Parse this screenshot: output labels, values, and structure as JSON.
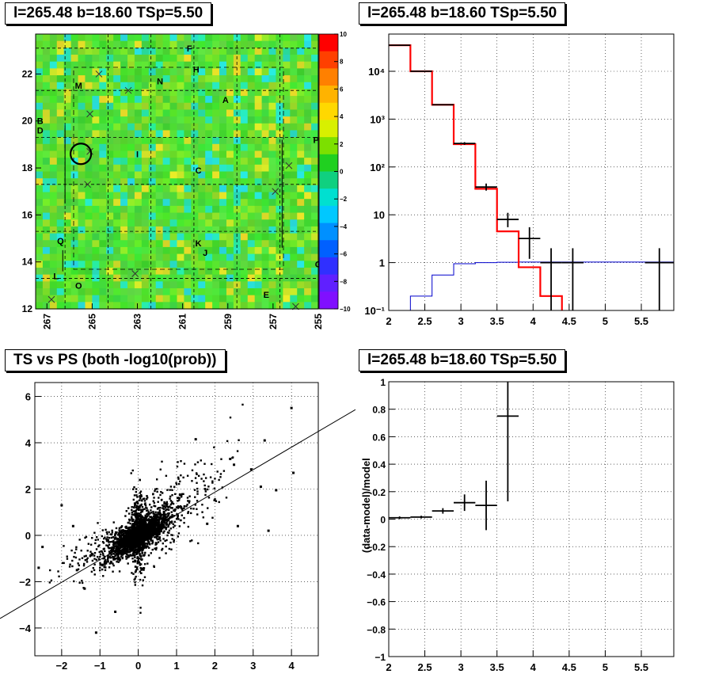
{
  "colors": {
    "red": "#ff0000",
    "blue": "#0000cc",
    "black": "#000000",
    "grid": "#000000"
  },
  "panels": {
    "map": {
      "title": "l=265.48 b=18.60 TSp=5.50",
      "x_ticks": [
        "267",
        "265",
        "263",
        "261",
        "259",
        "257",
        "255"
      ],
      "y_ticks": [
        "12",
        "14",
        "16",
        "18",
        "20",
        "22"
      ],
      "colorbar_ticks": [
        "10",
        "8",
        "6",
        "4",
        "2",
        "0",
        "−2",
        "−4",
        "−6",
        "−8",
        "−10"
      ],
      "source_labels": [
        "F",
        "H",
        "N",
        "M",
        "A",
        "B",
        "D",
        "P",
        "I",
        "C",
        "Q",
        "K",
        "J",
        "L",
        "O",
        "E",
        "G"
      ]
    },
    "spectrum": {
      "title": "l=265.48 b=18.60 TSp=5.50",
      "x_ticks": [
        "2",
        "2.5",
        "3",
        "3.5",
        "4",
        "4.5",
        "5",
        "5.5"
      ],
      "y_ticks": [
        "10⁴",
        "10³",
        "10²",
        "10",
        "1",
        "10⁻¹"
      ]
    },
    "scatter": {
      "title": "TS vs PS (both -log10(prob))",
      "x_ticks": [
        "−2",
        "−1",
        "0",
        "1",
        "2",
        "3",
        "4"
      ],
      "y_ticks": [
        "6",
        "4",
        "2",
        "0",
        "−2",
        "−4"
      ]
    },
    "residual": {
      "title": "l=265.48 b=18.60 TSp=5.50",
      "ylabel": "(data-model)/model",
      "x_ticks": [
        "2",
        "2.5",
        "3",
        "3.5",
        "4",
        "4.5",
        "5",
        "5.5"
      ],
      "y_ticks": [
        "1",
        "0.8",
        "0.6",
        "0.4",
        "0.2",
        "0",
        "−0.2",
        "−0.4",
        "−0.6",
        "−0.8",
        "−1"
      ]
    }
  },
  "chart_data": [
    {
      "type": "heatmap",
      "title": "l=265.48 b=18.60 TSp=5.50",
      "xlim": [
        267.5,
        255
      ],
      "ylim": [
        12,
        23.7
      ],
      "zlim": [
        -10,
        10
      ],
      "x_ticks": [
        267,
        265,
        263,
        261,
        259,
        257,
        255
      ],
      "y_ticks": [
        12,
        14,
        16,
        18,
        20,
        22
      ],
      "source_labels": [
        {
          "label": "F",
          "l": 260.7,
          "b": 23.1
        },
        {
          "label": "H",
          "l": 260.4,
          "b": 22.2
        },
        {
          "label": "N",
          "l": 262.0,
          "b": 21.7
        },
        {
          "label": "M",
          "l": 265.6,
          "b": 21.5
        },
        {
          "label": "A",
          "l": 259.1,
          "b": 20.9
        },
        {
          "label": "B",
          "l": 267.3,
          "b": 20.0
        },
        {
          "label": "D",
          "l": 267.3,
          "b": 19.6
        },
        {
          "label": "P",
          "l": 255.1,
          "b": 19.2
        },
        {
          "label": "I",
          "l": 263.0,
          "b": 18.6
        },
        {
          "label": "C",
          "l": 260.3,
          "b": 17.9
        },
        {
          "label": "Q",
          "l": 266.4,
          "b": 14.9
        },
        {
          "label": "K",
          "l": 260.3,
          "b": 14.8
        },
        {
          "label": "J",
          "l": 260.0,
          "b": 14.4
        },
        {
          "label": "L",
          "l": 266.6,
          "b": 13.4
        },
        {
          "label": "O",
          "l": 265.6,
          "b": 13.0
        },
        {
          "label": "E",
          "l": 257.3,
          "b": 12.6
        },
        {
          "label": "G",
          "l": 255.0,
          "b": 13.9
        }
      ]
    },
    {
      "type": "line",
      "title": "l=265.48 b=18.60 TSp=5.50",
      "xlim": [
        2,
        5.95
      ],
      "ylim": [
        0.1,
        60000
      ],
      "log_y": true,
      "series": [
        {
          "edges": [
            2.0,
            2.3,
            2.6,
            2.9,
            3.2,
            3.5,
            3.8,
            4.1,
            4.4
          ],
          "values": [
            35000,
            10000,
            2000,
            300,
            35,
            4.5,
            0.8,
            0.2,
            0.08
          ]
        },
        {
          "edges": [
            2.0,
            2.3,
            2.6,
            2.9,
            3.2,
            3.5,
            3.8,
            4.1,
            5.95
          ],
          "values": [
            0.1,
            0.2,
            0.55,
            0.95,
            1.0,
            1.02,
            1.03,
            1.03,
            1.03
          ]
        }
      ],
      "points": [
        {
          "x": 2.15,
          "y": 35000,
          "xerr": 0.15,
          "ylo": 34000,
          "yhi": 36000
        },
        {
          "x": 2.45,
          "y": 10000,
          "xerr": 0.15,
          "ylo": 9800,
          "yhi": 10200
        },
        {
          "x": 2.75,
          "y": 2000,
          "xerr": 0.15,
          "ylo": 1950,
          "yhi": 2050
        },
        {
          "x": 3.05,
          "y": 310,
          "xerr": 0.15,
          "ylo": 290,
          "yhi": 330
        },
        {
          "x": 3.35,
          "y": 38,
          "xerr": 0.15,
          "ylo": 32,
          "yhi": 45
        },
        {
          "x": 3.65,
          "y": 8,
          "xerr": 0.15,
          "ylo": 5.5,
          "yhi": 11
        },
        {
          "x": 3.95,
          "y": 3.2,
          "xerr": 0.15,
          "ylo": 1.2,
          "yhi": 5.5
        },
        {
          "x": 4.25,
          "y": 1.0,
          "xerr": 0.15,
          "ylo": 0.08,
          "yhi": 2.0
        },
        {
          "x": 4.55,
          "y": 1.0,
          "xerr": 0.15,
          "ylo": 0.08,
          "yhi": 2.0
        },
        {
          "x": 5.75,
          "y": 1.0,
          "xerr": 0.2,
          "ylo": 0.08,
          "yhi": 2.0
        }
      ]
    },
    {
      "type": "scatter",
      "title": "TS vs PS (both -log10(prob))",
      "xlim": [
        -2.7,
        4.7
      ],
      "ylim": [
        -5.2,
        6.6
      ],
      "fit_line": {
        "slope": 0.97,
        "intercept": 0.0
      },
      "outliers": [
        [
          4.0,
          5.5
        ],
        [
          3.3,
          4.1
        ],
        [
          2.95,
          2.85
        ],
        [
          3.6,
          1.95
        ],
        [
          3.4,
          0.2
        ],
        [
          4.05,
          2.7
        ],
        [
          -1.1,
          -4.2
        ],
        [
          -1.4,
          -2.3
        ],
        [
          -2.6,
          -1.4
        ],
        [
          -2.0,
          1.3
        ],
        [
          1.5,
          4.15
        ],
        [
          2.4,
          3.3
        ],
        [
          2.5,
          3.05
        ],
        [
          3.2,
          2.1
        ],
        [
          -1.7,
          0.4
        ],
        [
          -1.6,
          -1.5
        ],
        [
          -2.5,
          -0.5
        ],
        [
          2.6,
          0.4
        ],
        [
          1.8,
          0.5
        ],
        [
          -0.6,
          -3.3
        ]
      ]
    },
    {
      "type": "scatter",
      "title": "l=265.48 b=18.60 TSp=5.50",
      "ylabel": "(data-model)/model",
      "xlim": [
        2,
        5.95
      ],
      "ylim": [
        -1,
        1
      ],
      "points": [
        {
          "x": 2.15,
          "y": 0.01,
          "xerr": 0.15,
          "yerr": 0.01
        },
        {
          "x": 2.45,
          "y": 0.015,
          "xerr": 0.15,
          "yerr": 0.01
        },
        {
          "x": 2.75,
          "y": 0.06,
          "xerr": 0.15,
          "yerr": 0.02
        },
        {
          "x": 3.05,
          "y": 0.12,
          "xerr": 0.15,
          "yerr": 0.06
        },
        {
          "x": 3.35,
          "y": 0.1,
          "xerr": 0.15,
          "yerr": 0.18
        },
        {
          "x": 3.65,
          "y": 0.75,
          "xerr": 0.15,
          "yerr": 0.62
        }
      ]
    }
  ]
}
